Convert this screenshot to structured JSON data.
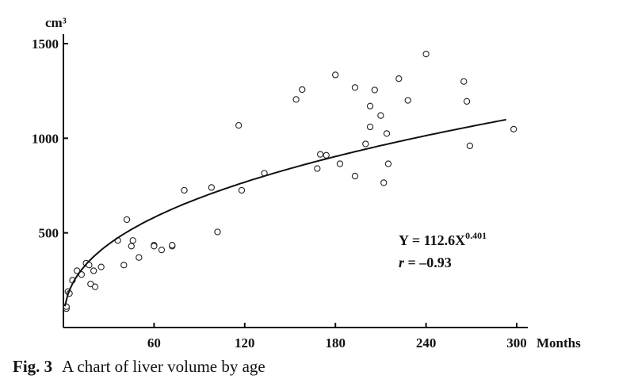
{
  "caption": {
    "figure_label": "Fig. 3",
    "text": "A chart of liver volume by age"
  },
  "chart_data": {
    "type": "scatter",
    "title": "",
    "xlabel": "Months",
    "ylabel": "cm³",
    "xlim": [
      0,
      300
    ],
    "ylim": [
      0,
      1500
    ],
    "x_ticks": [
      60,
      120,
      180,
      240,
      300
    ],
    "y_ticks": [
      500,
      1000,
      1500
    ],
    "grid": false,
    "legend": "none",
    "points": [
      [
        2,
        100
      ],
      [
        2,
        110
      ],
      [
        3,
        190
      ],
      [
        4,
        180
      ],
      [
        6,
        250
      ],
      [
        9,
        300
      ],
      [
        12,
        280
      ],
      [
        15,
        340
      ],
      [
        17,
        330
      ],
      [
        18,
        230
      ],
      [
        20,
        300
      ],
      [
        21,
        215
      ],
      [
        25,
        320
      ],
      [
        36,
        460
      ],
      [
        40,
        330
      ],
      [
        42,
        570
      ],
      [
        45,
        430
      ],
      [
        46,
        460
      ],
      [
        50,
        370
      ],
      [
        60,
        435
      ],
      [
        60,
        430
      ],
      [
        65,
        410
      ],
      [
        72,
        430
      ],
      [
        72,
        435
      ],
      [
        80,
        725
      ],
      [
        98,
        740
      ],
      [
        102,
        505
      ],
      [
        116,
        1068
      ],
      [
        118,
        725
      ],
      [
        133,
        815
      ],
      [
        154,
        1205
      ],
      [
        158,
        1257
      ],
      [
        168,
        840
      ],
      [
        170,
        915
      ],
      [
        174,
        910
      ],
      [
        180,
        1335
      ],
      [
        183,
        865
      ],
      [
        193,
        1268
      ],
      [
        193,
        800
      ],
      [
        200,
        970
      ],
      [
        203,
        1170
      ],
      [
        203,
        1060
      ],
      [
        206,
        1255
      ],
      [
        210,
        1120
      ],
      [
        212,
        765
      ],
      [
        214,
        1025
      ],
      [
        215,
        865
      ],
      [
        222,
        1315
      ],
      [
        228,
        1200
      ],
      [
        240,
        1445
      ],
      [
        265,
        1300
      ],
      [
        267,
        1195
      ],
      [
        269,
        960
      ],
      [
        298,
        1048
      ]
    ],
    "fit": {
      "equation_lhs": "Y = 112.6X",
      "equation_exponent": "0.401",
      "r_label": "r",
      "r_value": " = –0.93",
      "a": 112.6,
      "b": 0.401,
      "x_range": [
        1,
        293
      ]
    }
  }
}
